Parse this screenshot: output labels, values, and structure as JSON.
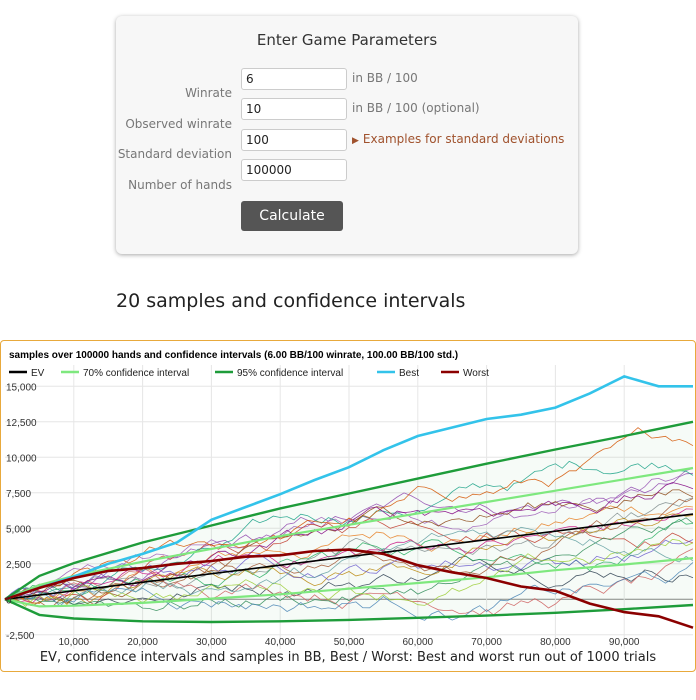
{
  "form": {
    "title": "Enter Game Parameters",
    "fields": [
      {
        "label": "Winrate",
        "value": "6",
        "unit": "in BB / 100"
      },
      {
        "label": "Observed winrate",
        "value": "10",
        "unit": "in BB / 100 (optional)"
      },
      {
        "label": "Standard deviation",
        "value": "100",
        "link": "Examples for standard deviations"
      },
      {
        "label": "Number of hands",
        "value": "100000"
      }
    ],
    "calculate_label": "Calculate"
  },
  "section_heading": "20 samples and confidence intervals",
  "caption": "EV, confidence intervals and samples in BB, Best / Worst: Best and worst run out of 1000 trials",
  "colors": {
    "ev": "#000000",
    "ci70": "#7ee87e",
    "ci95": "#1e9c3a",
    "best": "#33c3ea",
    "worst": "#8b0000",
    "frame": "#e8a93c"
  },
  "chart_data": {
    "type": "line",
    "title": "samples over 100000 hands and confidence intervals (6.00 BB/100 winrate, 100.00 BB/100 std.)",
    "xlabel": "",
    "ylabel": "",
    "xlim": [
      0,
      100000
    ],
    "ylim": [
      -3500,
      16500
    ],
    "x_ticks": [
      10000,
      20000,
      30000,
      40000,
      50000,
      60000,
      70000,
      80000,
      90000
    ],
    "x_tick_labels": [
      "10,000",
      "20,000",
      "30,000",
      "40,000",
      "50,000",
      "60,000",
      "70,000",
      "80,000",
      "90,000"
    ],
    "y_ticks": [
      -2500,
      0,
      2500,
      5000,
      7500,
      10000,
      12500,
      15000
    ],
    "y_tick_labels": [
      "-2,500",
      "0",
      "2,500",
      "5,000",
      "7,500",
      "10,000",
      "12,500",
      "15,000"
    ],
    "grid": true,
    "legend": [
      "EV",
      "70% confidence interval",
      "95% confidence interval",
      "Best",
      "Worst"
    ],
    "legend_position": "top",
    "series": [
      {
        "name": "EV",
        "x": [
          0,
          100000
        ],
        "y": [
          0,
          6000
        ]
      },
      {
        "name": "70% confidence interval",
        "x": [
          0,
          5000,
          10000,
          20000,
          30000,
          40000,
          50000,
          60000,
          70000,
          80000,
          90000,
          100000
        ],
        "y_upper": [
          0,
          1000,
          1650,
          2650,
          3550,
          4450,
          5250,
          6050,
          6850,
          7650,
          8450,
          9250
        ],
        "y_lower": [
          0,
          -500,
          -450,
          -250,
          50,
          350,
          750,
          1150,
          1550,
          2050,
          2450,
          2900
        ]
      },
      {
        "name": "95% confidence interval",
        "x": [
          0,
          5000,
          10000,
          20000,
          30000,
          40000,
          50000,
          60000,
          70000,
          80000,
          90000,
          100000
        ],
        "y_upper": [
          0,
          1650,
          2550,
          4000,
          5200,
          6400,
          7450,
          8500,
          9550,
          10550,
          11500,
          12500
        ],
        "y_lower": [
          0,
          -1100,
          -1350,
          -1550,
          -1600,
          -1550,
          -1450,
          -1300,
          -1150,
          -950,
          -700,
          -400
        ]
      },
      {
        "name": "Best",
        "x": [
          0,
          5000,
          10000,
          15000,
          20000,
          25000,
          30000,
          35000,
          40000,
          45000,
          50000,
          55000,
          60000,
          65000,
          70000,
          75000,
          80000,
          85000,
          90000,
          95000,
          100000
        ],
        "y": [
          0,
          800,
          1600,
          2500,
          3200,
          4000,
          5600,
          6500,
          7400,
          8400,
          9300,
          10500,
          11500,
          12100,
          12700,
          13000,
          13500,
          14500,
          15700,
          15000,
          15000
        ]
      },
      {
        "name": "Worst",
        "x": [
          0,
          5000,
          10000,
          15000,
          20000,
          25000,
          30000,
          35000,
          40000,
          45000,
          50000,
          55000,
          60000,
          65000,
          70000,
          75000,
          80000,
          85000,
          90000,
          95000,
          100000
        ],
        "y": [
          0,
          800,
          1500,
          2000,
          2200,
          2500,
          2700,
          3000,
          3100,
          3400,
          3500,
          3200,
          2400,
          1900,
          1500,
          900,
          600,
          -300,
          -900,
          -1200,
          -2000
        ]
      }
    ]
  }
}
